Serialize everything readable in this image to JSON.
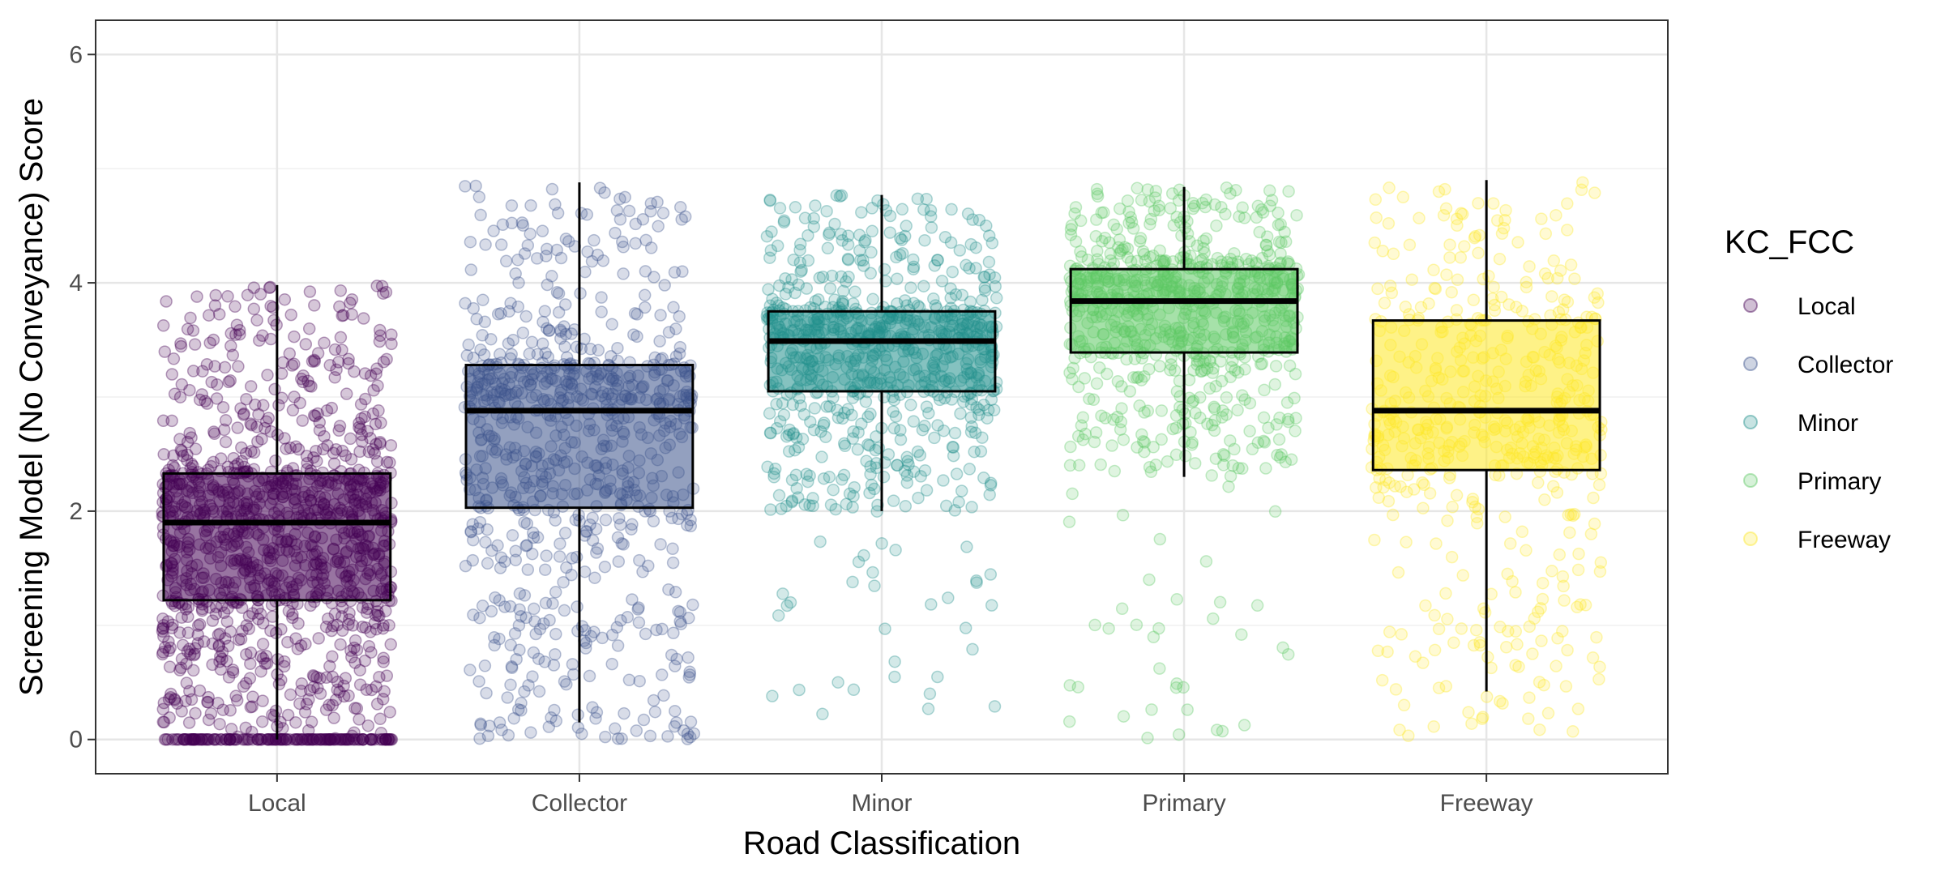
{
  "chart_data": {
    "type": "box-jitter",
    "xlabel": "Road Classification",
    "ylabel": "Screening Model (No Conveyance) Score",
    "ylim": [
      -0.3,
      6.3
    ],
    "y_ticks": [
      0,
      2,
      4,
      6
    ],
    "categories": [
      "Local",
      "Collector",
      "Minor",
      "Primary",
      "Freeway"
    ],
    "colors": [
      "#440154",
      "#3B528B",
      "#21908C",
      "#5DC863",
      "#FDE725"
    ],
    "boxes": [
      {
        "category": "Local",
        "whisker_low": 0.0,
        "q1": 1.22,
        "median": 1.9,
        "q3": 2.33,
        "whisker_high": 3.98
      },
      {
        "category": "Collector",
        "whisker_low": 0.15,
        "q1": 2.03,
        "median": 2.88,
        "q3": 3.28,
        "whisker_high": 4.88
      },
      {
        "category": "Minor",
        "whisker_low": 2.0,
        "q1": 3.05,
        "median": 3.49,
        "q3": 3.75,
        "whisker_high": 4.77
      },
      {
        "category": "Primary",
        "whisker_low": 2.3,
        "q1": 3.39,
        "median": 3.84,
        "q3": 4.12,
        "whisker_high": 4.84
      },
      {
        "category": "Freeway",
        "whisker_low": 0.42,
        "q1": 2.36,
        "median": 2.88,
        "q3": 3.67,
        "whisker_high": 4.9
      }
    ],
    "point_density": [
      "very-high",
      "high",
      "high",
      "high",
      "medium"
    ],
    "grid": true,
    "legend": {
      "title": "KC_FCC",
      "position": "right",
      "entries": [
        "Local",
        "Collector",
        "Minor",
        "Primary",
        "Freeway"
      ]
    }
  }
}
